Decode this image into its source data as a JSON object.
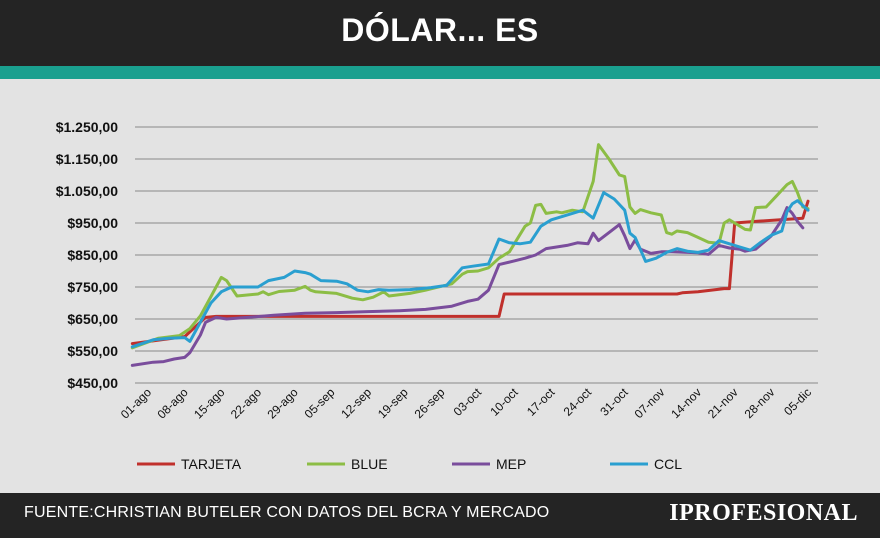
{
  "header": {
    "title": "DÓLAR... ES"
  },
  "footer": {
    "source": "FUENTE:CHRISTIAN BUTELER CON DATOS DEL BCRA Y MERCADO",
    "brand": "IPROFESIONAL"
  },
  "colors": {
    "header_bg": "#242424",
    "accent_bar": "#1aa08f",
    "background": "#e3e3e3"
  },
  "chart_data": {
    "type": "line",
    "title": "DÓLAR... ES",
    "ylim": [
      450,
      1250
    ],
    "yticks": [
      {
        "value": 450,
        "label": "$450,00"
      },
      {
        "value": 550,
        "label": "$550,00"
      },
      {
        "value": 650,
        "label": "$650,00"
      },
      {
        "value": 750,
        "label": "$750,00"
      },
      {
        "value": 850,
        "label": "$850,00"
      },
      {
        "value": 950,
        "label": "$950,00"
      },
      {
        "value": 1050,
        "label": "$1.050,00"
      },
      {
        "value": 1150,
        "label": "$1.150,00"
      },
      {
        "value": 1250,
        "label": "$1.250,00"
      }
    ],
    "xlim": [
      "2022-08-01",
      "2022-12-05"
    ],
    "xticks": [
      "01-ago",
      "08-ago",
      "15-ago",
      "22-ago",
      "29-ago",
      "05-sep",
      "12-sep",
      "19-sep",
      "26-sep",
      "03-oct",
      "10-oct",
      "17-oct",
      "24-oct",
      "31-oct",
      "07-nov",
      "14-nov",
      "21-nov",
      "28-nov",
      "05-dic"
    ],
    "grid": true,
    "legend_position": "bottom",
    "series": [
      {
        "name": "TARJETA",
        "color": "#c0302c",
        "points": [
          [
            "2022-07-29",
            573
          ],
          [
            "2022-08-08",
            595
          ],
          [
            "2022-08-10",
            625
          ],
          [
            "2022-08-12",
            655
          ],
          [
            "2022-08-14",
            658
          ],
          [
            "2022-09-01",
            658
          ],
          [
            "2022-09-20",
            658
          ],
          [
            "2022-10-03",
            658
          ],
          [
            "2022-10-07",
            658
          ],
          [
            "2022-10-08",
            728
          ],
          [
            "2022-10-20",
            728
          ],
          [
            "2022-11-01",
            728
          ],
          [
            "2022-11-10",
            728
          ],
          [
            "2022-11-11",
            732
          ],
          [
            "2022-11-14",
            735
          ],
          [
            "2022-11-19",
            745
          ],
          [
            "2022-11-20",
            745
          ],
          [
            "2022-11-21",
            950
          ],
          [
            "2022-11-25",
            955
          ],
          [
            "2022-12-04",
            965
          ],
          [
            "2022-12-05",
            1018
          ]
        ]
      },
      {
        "name": "BLUE",
        "color": "#8cbd45",
        "points": [
          [
            "2022-07-29",
            560
          ],
          [
            "2022-08-03",
            590
          ],
          [
            "2022-08-07",
            598
          ],
          [
            "2022-08-09",
            620
          ],
          [
            "2022-08-11",
            660
          ],
          [
            "2022-08-13",
            720
          ],
          [
            "2022-08-15",
            780
          ],
          [
            "2022-08-16",
            770
          ],
          [
            "2022-08-18",
            722
          ],
          [
            "2022-08-22",
            728
          ],
          [
            "2022-08-23",
            735
          ],
          [
            "2022-08-24",
            726
          ],
          [
            "2022-08-26",
            736
          ],
          [
            "2022-08-29",
            740
          ],
          [
            "2022-08-31",
            752
          ],
          [
            "2022-09-01",
            740
          ],
          [
            "2022-09-02",
            735
          ],
          [
            "2022-09-06",
            730
          ],
          [
            "2022-09-08",
            720
          ],
          [
            "2022-09-09",
            715
          ],
          [
            "2022-09-11",
            710
          ],
          [
            "2022-09-13",
            718
          ],
          [
            "2022-09-15",
            735
          ],
          [
            "2022-09-16",
            722
          ],
          [
            "2022-09-20",
            730
          ],
          [
            "2022-09-23",
            740
          ],
          [
            "2022-09-25",
            748
          ],
          [
            "2022-09-28",
            760
          ],
          [
            "2022-09-30",
            790
          ],
          [
            "2022-10-01",
            798
          ],
          [
            "2022-10-03",
            800
          ],
          [
            "2022-10-05",
            810
          ],
          [
            "2022-10-07",
            840
          ],
          [
            "2022-10-09",
            860
          ],
          [
            "2022-10-12",
            940
          ],
          [
            "2022-10-13",
            950
          ],
          [
            "2022-10-14",
            1005
          ],
          [
            "2022-10-15",
            1008
          ],
          [
            "2022-10-16",
            980
          ],
          [
            "2022-10-18",
            985
          ],
          [
            "2022-10-19",
            982
          ],
          [
            "2022-10-21",
            990
          ],
          [
            "2022-10-23",
            985
          ],
          [
            "2022-10-25",
            1080
          ],
          [
            "2022-10-26",
            1195
          ],
          [
            "2022-10-28",
            1150
          ],
          [
            "2022-10-30",
            1100
          ],
          [
            "2022-10-31",
            1095
          ],
          [
            "2022-11-01",
            1000
          ],
          [
            "2022-11-02",
            980
          ],
          [
            "2022-11-03",
            992
          ],
          [
            "2022-11-05",
            982
          ],
          [
            "2022-11-07",
            975
          ],
          [
            "2022-11-08",
            920
          ],
          [
            "2022-11-09",
            915
          ],
          [
            "2022-11-10",
            925
          ],
          [
            "2022-11-12",
            920
          ],
          [
            "2022-11-14",
            905
          ],
          [
            "2022-11-16",
            890
          ],
          [
            "2022-11-18",
            887
          ],
          [
            "2022-11-19",
            950
          ],
          [
            "2022-11-20",
            960
          ],
          [
            "2022-11-21",
            950
          ],
          [
            "2022-11-23",
            930
          ],
          [
            "2022-11-24",
            928
          ],
          [
            "2022-11-25",
            998
          ],
          [
            "2022-11-27",
            1000
          ],
          [
            "2022-11-29",
            1035
          ],
          [
            "2022-12-01",
            1070
          ],
          [
            "2022-12-02",
            1080
          ],
          [
            "2022-12-03",
            1045
          ],
          [
            "2022-12-04",
            1000
          ],
          [
            "2022-12-05",
            995
          ]
        ]
      },
      {
        "name": "MEP",
        "color": "#7a4d9c",
        "points": [
          [
            "2022-07-29",
            505
          ],
          [
            "2022-08-02",
            515
          ],
          [
            "2022-08-04",
            517
          ],
          [
            "2022-08-06",
            525
          ],
          [
            "2022-08-08",
            530
          ],
          [
            "2022-08-09",
            545
          ],
          [
            "2022-08-11",
            600
          ],
          [
            "2022-08-12",
            640
          ],
          [
            "2022-08-14",
            655
          ],
          [
            "2022-08-16",
            650
          ],
          [
            "2022-08-20",
            655
          ],
          [
            "2022-08-25",
            662
          ],
          [
            "2022-08-31",
            668
          ],
          [
            "2022-09-06",
            670
          ],
          [
            "2022-09-12",
            673
          ],
          [
            "2022-09-18",
            676
          ],
          [
            "2022-09-23",
            680
          ],
          [
            "2022-09-28",
            690
          ],
          [
            "2022-10-01",
            705
          ],
          [
            "2022-10-03",
            712
          ],
          [
            "2022-10-05",
            740
          ],
          [
            "2022-10-07",
            820
          ],
          [
            "2022-10-10",
            832
          ],
          [
            "2022-10-12",
            840
          ],
          [
            "2022-10-14",
            850
          ],
          [
            "2022-10-16",
            870
          ],
          [
            "2022-10-18",
            875
          ],
          [
            "2022-10-20",
            880
          ],
          [
            "2022-10-22",
            888
          ],
          [
            "2022-10-24",
            885
          ],
          [
            "2022-10-25",
            918
          ],
          [
            "2022-10-26",
            895
          ],
          [
            "2022-10-28",
            920
          ],
          [
            "2022-10-30",
            945
          ],
          [
            "2022-10-31",
            910
          ],
          [
            "2022-11-01",
            870
          ],
          [
            "2022-11-02",
            897
          ],
          [
            "2022-11-03",
            868
          ],
          [
            "2022-11-05",
            855
          ],
          [
            "2022-11-07",
            860
          ],
          [
            "2022-11-09",
            860
          ],
          [
            "2022-11-12",
            858
          ],
          [
            "2022-11-14",
            857
          ],
          [
            "2022-11-16",
            852
          ],
          [
            "2022-11-18",
            880
          ],
          [
            "2022-11-20",
            872
          ],
          [
            "2022-11-22",
            868
          ],
          [
            "2022-11-23",
            862
          ],
          [
            "2022-11-25",
            868
          ],
          [
            "2022-11-28",
            910
          ],
          [
            "2022-11-30",
            960
          ],
          [
            "2022-12-01",
            998
          ],
          [
            "2022-12-02",
            980
          ],
          [
            "2022-12-03",
            955
          ],
          [
            "2022-12-04",
            935
          ]
        ]
      },
      {
        "name": "CCL",
        "color": "#2a9fd0",
        "points": [
          [
            "2022-07-29",
            563
          ],
          [
            "2022-08-02",
            585
          ],
          [
            "2022-08-05",
            590
          ],
          [
            "2022-08-08",
            592
          ],
          [
            "2022-08-09",
            580
          ],
          [
            "2022-08-11",
            640
          ],
          [
            "2022-08-13",
            700
          ],
          [
            "2022-08-15",
            735
          ],
          [
            "2022-08-17",
            750
          ],
          [
            "2022-08-22",
            750
          ],
          [
            "2022-08-24",
            770
          ],
          [
            "2022-08-27",
            780
          ],
          [
            "2022-08-29",
            800
          ],
          [
            "2022-08-31",
            795
          ],
          [
            "2022-09-01",
            790
          ],
          [
            "2022-09-03",
            770
          ],
          [
            "2022-09-06",
            768
          ],
          [
            "2022-09-08",
            760
          ],
          [
            "2022-09-10",
            740
          ],
          [
            "2022-09-12",
            735
          ],
          [
            "2022-09-14",
            742
          ],
          [
            "2022-09-16",
            740
          ],
          [
            "2022-09-20",
            742
          ],
          [
            "2022-09-24",
            748
          ],
          [
            "2022-09-27",
            755
          ],
          [
            "2022-09-30",
            810
          ],
          [
            "2022-10-02",
            815
          ],
          [
            "2022-10-05",
            822
          ],
          [
            "2022-10-07",
            900
          ],
          [
            "2022-10-09",
            888
          ],
          [
            "2022-10-11",
            885
          ],
          [
            "2022-10-13",
            890
          ],
          [
            "2022-10-15",
            940
          ],
          [
            "2022-10-17",
            960
          ],
          [
            "2022-10-21",
            980
          ],
          [
            "2022-10-23",
            990
          ],
          [
            "2022-10-25",
            965
          ],
          [
            "2022-10-27",
            1045
          ],
          [
            "2022-10-29",
            1025
          ],
          [
            "2022-10-31",
            990
          ],
          [
            "2022-11-01",
            918
          ],
          [
            "2022-11-02",
            905
          ],
          [
            "2022-11-04",
            830
          ],
          [
            "2022-11-06",
            840
          ],
          [
            "2022-11-08",
            858
          ],
          [
            "2022-11-10",
            870
          ],
          [
            "2022-11-12",
            862
          ],
          [
            "2022-11-14",
            858
          ],
          [
            "2022-11-16",
            865
          ],
          [
            "2022-11-18",
            895
          ],
          [
            "2022-11-20",
            885
          ],
          [
            "2022-11-22",
            875
          ],
          [
            "2022-11-24",
            865
          ],
          [
            "2022-11-26",
            890
          ],
          [
            "2022-11-28",
            912
          ],
          [
            "2022-11-30",
            925
          ],
          [
            "2022-12-01",
            985
          ],
          [
            "2022-12-02",
            1010
          ],
          [
            "2022-12-03",
            1020
          ],
          [
            "2022-12-05",
            990
          ]
        ]
      }
    ]
  }
}
